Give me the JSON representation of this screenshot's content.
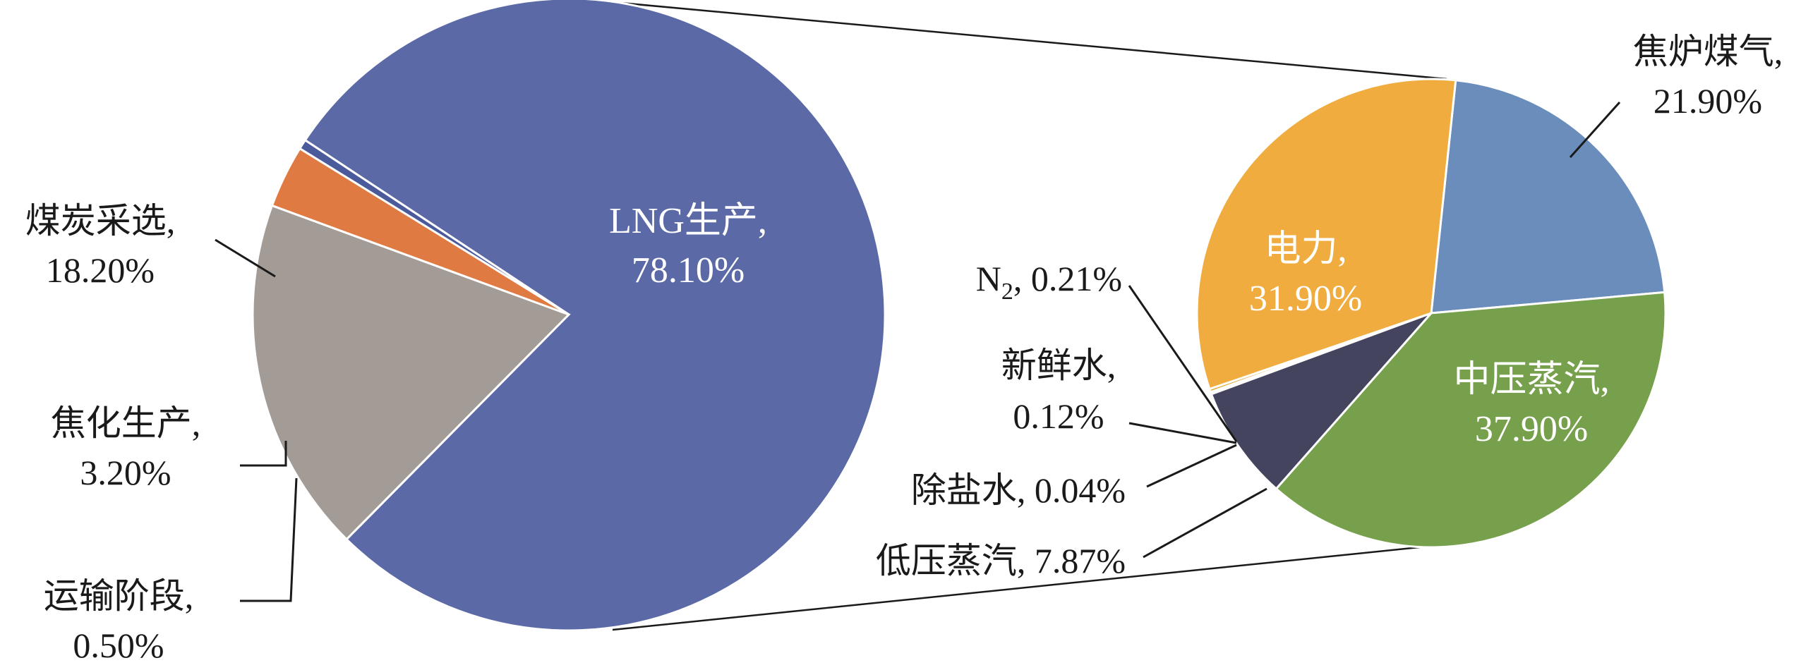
{
  "chart_data": [
    {
      "type": "pie",
      "slices": [
        {
          "name": "LNG生产",
          "value": 78.1,
          "label_line1": "LNG生产,",
          "label_line2": "78.10%",
          "color": "#5b6aa6"
        },
        {
          "name": "煤炭采选",
          "value": 18.2,
          "label_line1": "煤炭采选,",
          "label_line2": "18.20%",
          "color": "#a39b95"
        },
        {
          "name": "焦化生产",
          "value": 3.2,
          "label_line1": "焦化生产,",
          "label_line2": "3.20%",
          "color": "#e07a43"
        },
        {
          "name": "运输阶段",
          "value": 0.5,
          "label_line1": "运输阶段,",
          "label_line2": "0.50%",
          "color": "#4a5a9a"
        }
      ]
    },
    {
      "type": "pie",
      "slices": [
        {
          "name": "焦炉煤气",
          "value": 21.9,
          "label_line1": "焦炉煤气,",
          "label_line2": "21.90%",
          "color": "#6b8dbb"
        },
        {
          "name": "中压蒸汽",
          "value": 37.9,
          "label_line1": "中压蒸汽,",
          "label_line2": "37.90%",
          "color": "#76a04b"
        },
        {
          "name": "低压蒸汽",
          "value": 7.87,
          "label_line1": "低压蒸汽, 7.87%",
          "label_line2": "",
          "color": "#44445f"
        },
        {
          "name": "除盐水",
          "value": 0.04,
          "label_line1": "除盐水, 0.04%",
          "label_line2": "",
          "color": "#5a7fc0"
        },
        {
          "name": "新鲜水",
          "value": 0.12,
          "label_line1": "新鲜水,",
          "label_line2": "0.12%",
          "color": "#b0b0b0"
        },
        {
          "name": "N2",
          "value": 0.21,
          "label_line1": "N",
          "label_sub": "2",
          "label_rest": ", 0.21%",
          "color": "#e0a020"
        },
        {
          "name": "电力",
          "value": 31.9,
          "label_line1": "电力,",
          "label_line2": "31.90%",
          "color": "#f0ac3e"
        }
      ]
    }
  ]
}
